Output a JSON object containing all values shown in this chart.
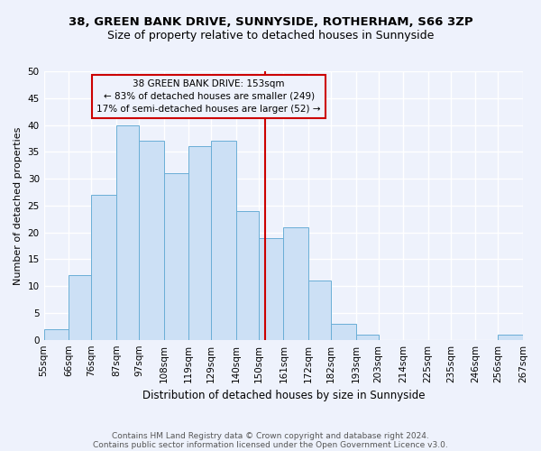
{
  "title1": "38, GREEN BANK DRIVE, SUNNYSIDE, ROTHERHAM, S66 3ZP",
  "title2": "Size of property relative to detached houses in Sunnyside",
  "xlabel": "Distribution of detached houses by size in Sunnyside",
  "ylabel": "Number of detached properties",
  "bin_edges": [
    55,
    66,
    76,
    87,
    97,
    108,
    119,
    129,
    140,
    150,
    161,
    172,
    182,
    193,
    203,
    214,
    225,
    235,
    246,
    256,
    267
  ],
  "bar_heights": [
    2,
    12,
    27,
    40,
    37,
    31,
    36,
    37,
    24,
    19,
    21,
    11,
    3,
    1,
    0,
    0,
    0,
    0,
    0,
    1
  ],
  "bar_facecolor": "#cce0f5",
  "bar_edgecolor": "#6aaed6",
  "vline_x": 153,
  "vline_color": "#cc0000",
  "annotation_title": "38 GREEN BANK DRIVE: 153sqm",
  "annotation_line1": "← 83% of detached houses are smaller (249)",
  "annotation_line2": "17% of semi-detached houses are larger (52) →",
  "annotation_box_edgecolor": "#cc0000",
  "ylim": [
    0,
    50
  ],
  "yticks": [
    0,
    5,
    10,
    15,
    20,
    25,
    30,
    35,
    40,
    45,
    50
  ],
  "footer1": "Contains HM Land Registry data © Crown copyright and database right 2024.",
  "footer2": "Contains public sector information licensed under the Open Government Licence v3.0.",
  "bg_color": "#eef2fc",
  "grid_color": "#ffffff",
  "title1_fontsize": 9.5,
  "title2_fontsize": 9,
  "xlabel_fontsize": 8.5,
  "ylabel_fontsize": 8,
  "tick_fontsize": 7.5,
  "footer_fontsize": 6.5,
  "ann_fontsize": 7.5
}
